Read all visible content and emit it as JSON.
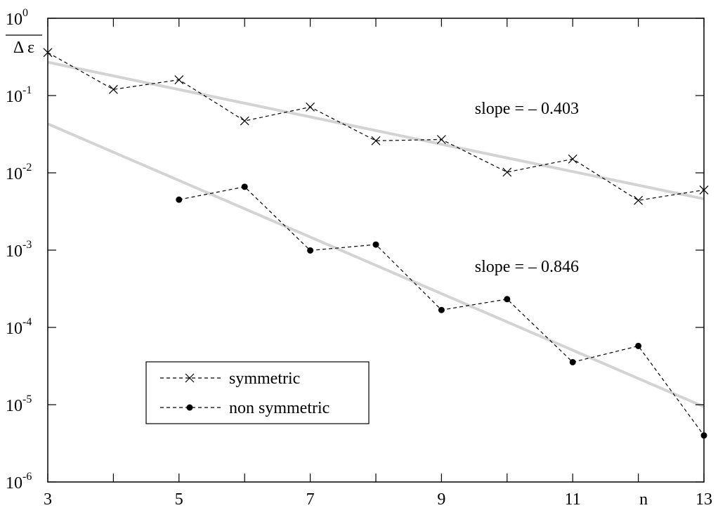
{
  "chart_data": {
    "type": "scatter",
    "title": "",
    "xlabel": "n",
    "ylabel": "Δ ε",
    "yscale": "log",
    "grid": false,
    "xlim": [
      3,
      13
    ],
    "ylim": [
      1e-06,
      1
    ],
    "x_ticks": [
      "3",
      "5",
      "7",
      "9",
      "11",
      "13"
    ],
    "y_ticks": [
      {
        "base": "10",
        "exp": "0"
      },
      {
        "base": "10",
        "exp": "-1"
      },
      {
        "base": "10",
        "exp": "-2"
      },
      {
        "base": "10",
        "exp": "-3"
      },
      {
        "base": "10",
        "exp": "-4"
      },
      {
        "base": "10",
        "exp": "-5"
      },
      {
        "base": "10",
        "exp": "-6"
      }
    ],
    "series": [
      {
        "name": "symmetric",
        "marker": "x",
        "line": "dashed",
        "color": "#000000",
        "x": [
          3,
          4,
          5,
          6,
          7,
          8,
          9,
          10,
          11,
          12,
          13
        ],
        "y": [
          0.36,
          0.12,
          0.16,
          0.047,
          0.071,
          0.026,
          0.027,
          0.0102,
          0.0151,
          0.0044,
          0.006
        ]
      },
      {
        "name": "non symmetric",
        "marker": "dot",
        "line": "dashed",
        "color": "#000000",
        "x": [
          5,
          6,
          7,
          8,
          9,
          10,
          11,
          12,
          13
        ],
        "y": [
          0.0045,
          0.0066,
          0.00099,
          0.00118,
          0.000168,
          0.000232,
          3.55e-05,
          5.75e-05,
          4e-06
        ]
      }
    ],
    "fits": [
      {
        "label": "slope = – 0.403",
        "color": "#d3d3d3",
        "x": [
          3,
          13
        ],
        "y": [
          0.27,
          0.0046
        ]
      },
      {
        "label": "slope = – 0.846",
        "color": "#d3d3d3",
        "x": [
          3,
          13
        ],
        "y": [
          0.043,
          9.4e-06
        ]
      }
    ],
    "annotations": [
      {
        "text": "slope = – 0.403",
        "x": 10,
        "y": 0.058
      },
      {
        "text": "slope = – 0.846",
        "x": 10,
        "y": 0.00052
      }
    ],
    "legend_position": "lower-left"
  }
}
